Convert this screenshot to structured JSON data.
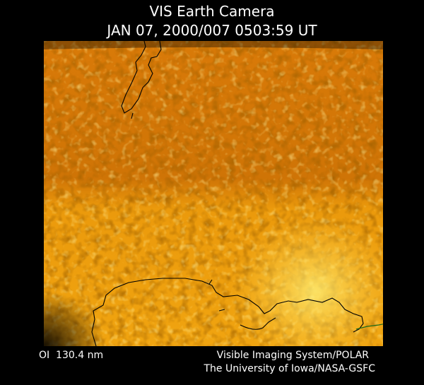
{
  "header": {
    "title": "VIS Earth Camera",
    "timestamp": "JAN 07, 2000/007 0503:59 UT"
  },
  "footer": {
    "wavelength": "OI  130.4 nm",
    "instrument": "Visible Imaging System/POLAR",
    "credit": "The University of Iowa/NASA-GSFC"
  }
}
